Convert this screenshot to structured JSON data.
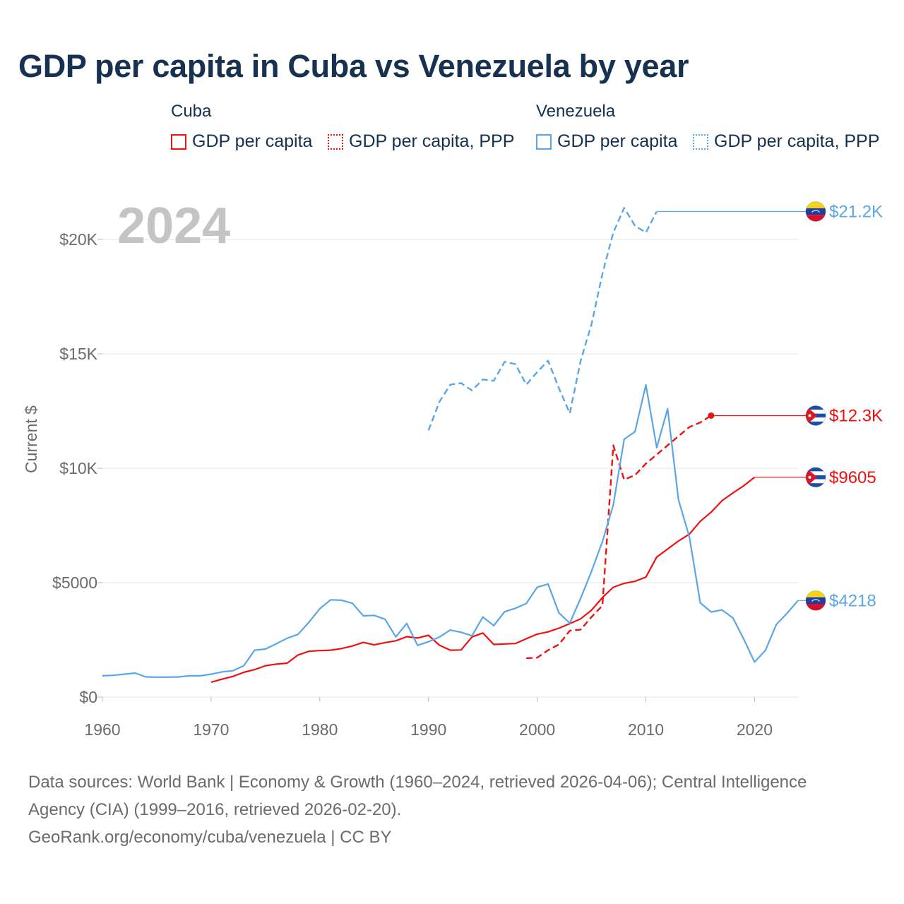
{
  "title": "GDP per capita in Cuba vs Venezuela by year",
  "legend": {
    "cuba": {
      "title": "Cuba",
      "items": [
        "GDP per capita",
        "GDP per capita, PPP"
      ]
    },
    "venezuela": {
      "title": "Venezuela",
      "items": [
        "GDP per capita",
        "GDP per capita, PPP"
      ]
    }
  },
  "colors": {
    "cuba": "#ee1111",
    "venezuela": "#5aa6e6",
    "grid": "#e6e6e6",
    "axis_text": "#6b6b6b",
    "year_watermark": "#c4c4c4"
  },
  "chart_data": {
    "type": "line",
    "title": "GDP per capita in Cuba vs Venezuela by year",
    "current_year_label": "2024",
    "ylabel": "Current $",
    "xlabel": "",
    "xlim": [
      1960,
      2024
    ],
    "ylim": [
      0,
      22000
    ],
    "x_ticks": [
      1960,
      1970,
      1980,
      1990,
      2000,
      2010,
      2020
    ],
    "x_tick_labels": [
      "1960",
      "1970",
      "1980",
      "1990",
      "2000",
      "2010",
      "2020"
    ],
    "y_ticks": [
      0,
      5000,
      10000,
      15000,
      20000
    ],
    "y_tick_labels": [
      "$0",
      "$5000",
      "$10K",
      "$15K",
      "$20K"
    ],
    "series": [
      {
        "name": "Venezuela GDP per capita, PPP",
        "country": "venezuela",
        "dashed": true,
        "x": [
          1990,
          1991,
          1992,
          1993,
          1994,
          1995,
          1996,
          1997,
          1998,
          1999,
          2000,
          2001,
          2002,
          2003,
          2004,
          2005,
          2006,
          2007,
          2008,
          2009,
          2010,
          2011
        ],
        "y": [
          11650,
          12900,
          13650,
          13720,
          13400,
          13880,
          13820,
          14650,
          14550,
          13650,
          14200,
          14700,
          13500,
          12400,
          14700,
          16300,
          18500,
          20300,
          21380,
          20600,
          20300,
          21220
        ],
        "end_label": "$21.2K"
      },
      {
        "name": "Cuba GDP per capita, PPP",
        "country": "cuba",
        "dashed": true,
        "x": [
          1999,
          2000,
          2001,
          2002,
          2003,
          2004,
          2005,
          2006,
          2007,
          2008,
          2009,
          2010,
          2011,
          2012,
          2013,
          2014,
          2015,
          2016
        ],
        "y": [
          1700,
          1720,
          2050,
          2300,
          2900,
          2950,
          3500,
          4000,
          11000,
          9500,
          9700,
          10200,
          10600,
          11000,
          11400,
          11800,
          12000,
          12300
        ],
        "end_label": "$12.3K"
      },
      {
        "name": "Cuba GDP per capita",
        "country": "cuba",
        "dashed": false,
        "x": [
          1970,
          1971,
          1972,
          1973,
          1974,
          1975,
          1976,
          1977,
          1978,
          1979,
          1980,
          1981,
          1982,
          1983,
          1984,
          1985,
          1986,
          1987,
          1988,
          1989,
          1990,
          1991,
          1992,
          1993,
          1994,
          1995,
          1996,
          1997,
          1998,
          1999,
          2000,
          2001,
          2002,
          2003,
          2004,
          2005,
          2006,
          2007,
          2008,
          2009,
          2010,
          2011,
          2012,
          2013,
          2014,
          2015,
          2016,
          2017,
          2018,
          2019,
          2020
        ],
        "y": [
          650,
          780,
          900,
          1080,
          1200,
          1370,
          1440,
          1480,
          1840,
          2000,
          2030,
          2050,
          2120,
          2230,
          2390,
          2280,
          2380,
          2460,
          2640,
          2580,
          2700,
          2270,
          2050,
          2060,
          2630,
          2800,
          2300,
          2320,
          2340,
          2550,
          2750,
          2850,
          3010,
          3210,
          3420,
          3800,
          4350,
          4800,
          4970,
          5060,
          5240,
          6120,
          6470,
          6820,
          7120,
          7680,
          8080,
          8580,
          8920,
          9230,
          9605
        ],
        "end_label": "$9605"
      },
      {
        "name": "Venezuela GDP per capita",
        "country": "venezuela",
        "dashed": false,
        "x": [
          1960,
          1961,
          1962,
          1963,
          1964,
          1965,
          1966,
          1967,
          1968,
          1969,
          1970,
          1971,
          1972,
          1973,
          1974,
          1975,
          1976,
          1977,
          1978,
          1979,
          1980,
          1981,
          1982,
          1983,
          1984,
          1985,
          1986,
          1987,
          1988,
          1989,
          1990,
          1991,
          1992,
          1993,
          1994,
          1995,
          1996,
          1997,
          1998,
          1999,
          2000,
          2001,
          2002,
          2003,
          2004,
          2005,
          2006,
          2007,
          2008,
          2009,
          2010,
          2011,
          2012,
          2013,
          2014,
          2015,
          2016,
          2017,
          2018,
          2019,
          2020,
          2021,
          2022,
          2023,
          2024
        ],
        "y": [
          930,
          950,
          1000,
          1050,
          880,
          870,
          870,
          880,
          930,
          930,
          1000,
          1100,
          1150,
          1370,
          2050,
          2100,
          2330,
          2570,
          2740,
          3270,
          3860,
          4250,
          4230,
          4100,
          3550,
          3570,
          3400,
          2630,
          3220,
          2260,
          2420,
          2620,
          2930,
          2830,
          2680,
          3500,
          3120,
          3730,
          3880,
          4090,
          4800,
          4940,
          3680,
          3230,
          4320,
          5500,
          6800,
          8400,
          11270,
          11600,
          13640,
          10900,
          12600,
          8620,
          7000,
          4120,
          3720,
          3810,
          3460,
          2540,
          1530,
          2040,
          3170,
          3670,
          4218
        ],
        "end_label": "$4218"
      }
    ],
    "end_markers": [
      {
        "series": "Cuba GDP per capita, PPP",
        "year": 2016
      }
    ]
  },
  "footer": {
    "line1": "Data sources: World Bank | Economy & Growth (1960–2024, retrieved 2026-04-06); Central Intelligence",
    "line2": "Agency (CIA) (1999–2016, retrieved 2026-02-20).",
    "line3": "GeoRank.org/economy/cuba/venezuela | CC BY"
  }
}
